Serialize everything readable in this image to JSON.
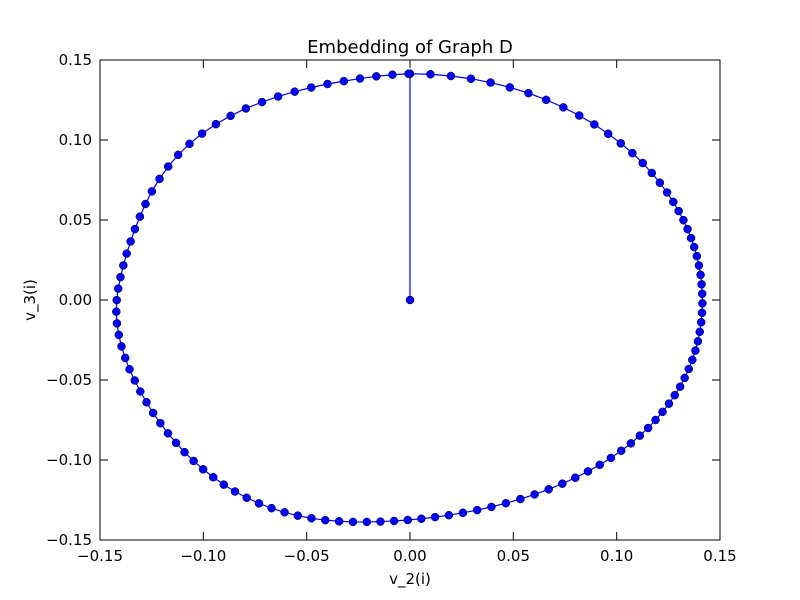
{
  "chart_data": {
    "type": "line",
    "title": "Embedding of Graph D",
    "xlabel": "v_2(i)",
    "ylabel": "v_3(i)",
    "xlim": [
      -0.15,
      0.15
    ],
    "ylim": [
      -0.15,
      0.15
    ],
    "xticks": [
      -0.15,
      -0.1,
      -0.05,
      0.0,
      0.05,
      0.1,
      0.15
    ],
    "yticks": [
      -0.15,
      -0.1,
      -0.05,
      0.0,
      0.05,
      0.1,
      0.15
    ],
    "xtick_labels": [
      "−0.15",
      "−0.10",
      "−0.05",
      "0.00",
      "0.05",
      "0.10",
      "0.15"
    ],
    "ytick_labels": [
      "−0.15",
      "−0.10",
      "−0.05",
      "0.00",
      "0.05",
      "0.10",
      "0.15"
    ],
    "grid": false,
    "marker": "circle",
    "color": "#0000ff",
    "series": [
      {
        "points": [
          [
            0.0,
            0.0
          ],
          [
            0.0,
            0.1414
          ],
          [
            0.0099,
            0.1411
          ],
          [
            0.0198,
            0.14
          ],
          [
            0.0295,
            0.1383
          ],
          [
            0.039,
            0.1359
          ],
          [
            0.0483,
            0.1329
          ],
          [
            0.0573,
            0.1293
          ],
          [
            0.0659,
            0.1251
          ],
          [
            0.0742,
            0.1204
          ],
          [
            0.0819,
            0.1153
          ],
          [
            0.0892,
            0.1097
          ],
          [
            0.0959,
            0.1039
          ],
          [
            0.102,
            0.0979
          ],
          [
            0.1076,
            0.0918
          ],
          [
            0.1126,
            0.0856
          ],
          [
            0.117,
            0.0794
          ],
          [
            0.1209,
            0.0733
          ],
          [
            0.1244,
            0.0672
          ],
          [
            0.1274,
            0.0613
          ],
          [
            0.13,
            0.0556
          ],
          [
            0.1323,
            0.0499
          ],
          [
            0.1343,
            0.0443
          ],
          [
            0.136,
            0.0387
          ],
          [
            0.1375,
            0.0331
          ],
          [
            0.1388,
            0.0274
          ],
          [
            0.1398,
            0.0216
          ],
          [
            0.1406,
            0.0157
          ],
          [
            0.1411,
            0.0098
          ],
          [
            0.1414,
            0.0039
          ],
          [
            0.1415,
            -0.0021
          ],
          [
            0.1413,
            -0.008
          ],
          [
            0.1409,
            -0.0139
          ],
          [
            0.1402,
            -0.0199
          ],
          [
            0.1393,
            -0.0258
          ],
          [
            0.1381,
            -0.0316
          ],
          [
            0.1366,
            -0.0374
          ],
          [
            0.1349,
            -0.0431
          ],
          [
            0.1329,
            -0.0487
          ],
          [
            0.1307,
            -0.0542
          ],
          [
            0.1281,
            -0.0595
          ],
          [
            0.1253,
            -0.0648
          ],
          [
            0.1222,
            -0.0699
          ],
          [
            0.1188,
            -0.075
          ],
          [
            0.1152,
            -0.08
          ],
          [
            0.1112,
            -0.0848
          ],
          [
            0.1069,
            -0.0896
          ],
          [
            0.1022,
            -0.0942
          ],
          [
            0.0972,
            -0.0987
          ],
          [
            0.0918,
            -0.103
          ],
          [
            0.0861,
            -0.1071
          ],
          [
            0.08,
            -0.1111
          ],
          [
            0.0737,
            -0.1148
          ],
          [
            0.0671,
            -0.1183
          ],
          [
            0.0603,
            -0.1215
          ],
          [
            0.0534,
            -0.1244
          ],
          [
            0.0464,
            -0.127
          ],
          [
            0.0394,
            -0.1293
          ],
          [
            0.0325,
            -0.1313
          ],
          [
            0.0256,
            -0.133
          ],
          [
            0.0188,
            -0.1345
          ],
          [
            0.0121,
            -0.1357
          ],
          [
            0.0055,
            -0.1367
          ],
          [
            -0.0011,
            -0.1375
          ],
          [
            -0.0077,
            -0.1381
          ],
          [
            -0.0143,
            -0.1385
          ],
          [
            -0.0209,
            -0.1387
          ],
          [
            -0.0276,
            -0.1387
          ],
          [
            -0.0343,
            -0.1383
          ],
          [
            -0.041,
            -0.1376
          ],
          [
            -0.0477,
            -0.1364
          ],
          [
            -0.0543,
            -0.1348
          ],
          [
            -0.0607,
            -0.1327
          ],
          [
            -0.067,
            -0.1301
          ],
          [
            -0.0731,
            -0.1271
          ],
          [
            -0.079,
            -0.1236
          ],
          [
            -0.0847,
            -0.1197
          ],
          [
            -0.0901,
            -0.1154
          ],
          [
            -0.0952,
            -0.1108
          ],
          [
            -0.1001,
            -0.1058
          ],
          [
            -0.1047,
            -0.1006
          ],
          [
            -0.1091,
            -0.0951
          ],
          [
            -0.1132,
            -0.0893
          ],
          [
            -0.1171,
            -0.0833
          ],
          [
            -0.1208,
            -0.077
          ],
          [
            -0.1243,
            -0.0706
          ],
          [
            -0.1275,
            -0.0639
          ],
          [
            -0.1305,
            -0.0572
          ],
          [
            -0.1332,
            -0.0503
          ],
          [
            -0.1357,
            -0.0433
          ],
          [
            -0.1378,
            -0.0362
          ],
          [
            -0.1396,
            -0.029
          ],
          [
            -0.1409,
            -0.0218
          ],
          [
            -0.1418,
            -0.0146
          ],
          [
            -0.1421,
            -0.0073
          ],
          [
            -0.1419,
            -0.0001
          ],
          [
            -0.1412,
            0.0071
          ],
          [
            -0.1401,
            0.0143
          ],
          [
            -0.1387,
            0.0216
          ],
          [
            -0.1371,
            0.029
          ],
          [
            -0.1352,
            0.0366
          ],
          [
            -0.1331,
            0.0443
          ],
          [
            -0.1307,
            0.0521
          ],
          [
            -0.128,
            0.06
          ],
          [
            -0.1249,
            0.0679
          ],
          [
            -0.1212,
            0.0757
          ],
          [
            -0.117,
            0.0834
          ],
          [
            -0.1122,
            0.0907
          ],
          [
            -0.1067,
            0.0976
          ],
          [
            -0.1006,
            0.104
          ],
          [
            -0.0939,
            0.1099
          ],
          [
            -0.0868,
            0.1151
          ],
          [
            -0.0794,
            0.1197
          ],
          [
            -0.0716,
            0.1237
          ],
          [
            -0.0638,
            0.1272
          ],
          [
            -0.0558,
            0.1302
          ],
          [
            -0.0478,
            0.1328
          ],
          [
            -0.0399,
            0.135
          ],
          [
            -0.032,
            0.1368
          ],
          [
            -0.0242,
            0.1384
          ],
          [
            -0.0163,
            0.1398
          ],
          [
            -0.0085,
            0.1408
          ],
          [
            -0.0007,
            0.1414
          ]
        ]
      }
    ]
  }
}
